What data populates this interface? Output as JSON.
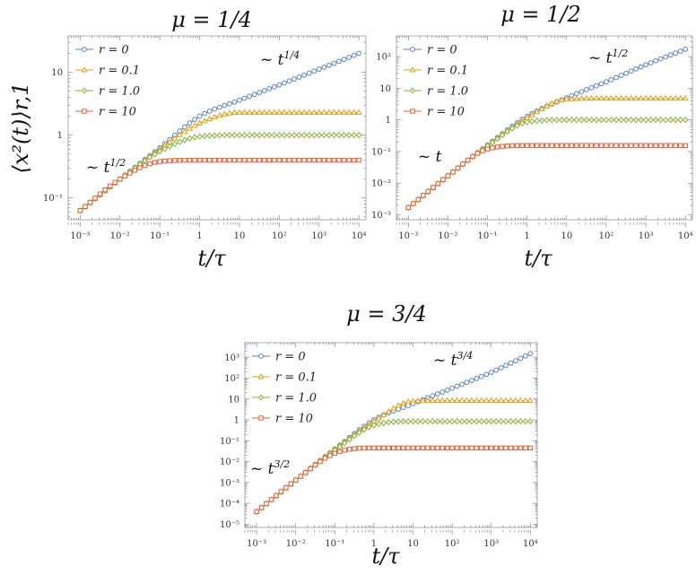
{
  "chart_data": [
    {
      "type": "line",
      "title": "μ = 1/4",
      "xlabel": "t/τ",
      "ylabel": "⟨x²(t)⟩r,1",
      "xscale": "log",
      "yscale": "log",
      "xlim": [
        0.0005,
        15000
      ],
      "ylim": [
        0.045,
        38
      ],
      "x_ticks": [
        0.001,
        0.01,
        0.1,
        1,
        10,
        100,
        1000,
        10000
      ],
      "x_tick_labels": [
        "10⁻³",
        "10⁻²",
        "10⁻¹",
        "1",
        "10",
        "10²",
        "10³",
        "10⁴"
      ],
      "y_ticks": [
        0.1,
        1,
        10
      ],
      "y_tick_labels": [
        "10⁻¹",
        "1",
        "10"
      ],
      "legend_position": "top-left",
      "grid": false,
      "annotations": [
        {
          "text": "~ t",
          "exp": "1/4",
          "near": "r = 0 curve, top right"
        },
        {
          "text": "~ t",
          "exp": "1/2",
          "near": "early-time region"
        }
      ],
      "x": [
        0.001,
        0.01,
        0.1,
        1,
        10,
        100,
        1000,
        10000
      ],
      "series": [
        {
          "name": "r = 0",
          "values": [
            0.063,
            0.2,
            0.63,
            2.0,
            3.6,
            6.3,
            11.2,
            20.0
          ]
        },
        {
          "name": "r = 0.1",
          "values": [
            0.063,
            0.2,
            0.6,
            1.55,
            2.3,
            2.3,
            2.3,
            2.3
          ]
        },
        {
          "name": "r = 1.0",
          "values": [
            0.063,
            0.2,
            0.55,
            0.95,
            1.0,
            1.0,
            1.0,
            1.0
          ]
        },
        {
          "name": "r = 10",
          "values": [
            0.063,
            0.2,
            0.38,
            0.4,
            0.4,
            0.4,
            0.4,
            0.4
          ]
        }
      ]
    },
    {
      "type": "line",
      "title": "μ = 1/2",
      "xlabel": "t/τ",
      "ylabel": "",
      "xscale": "log",
      "yscale": "log",
      "xlim": [
        0.0005,
        15000
      ],
      "ylim": [
        0.0007,
        450
      ],
      "x_ticks": [
        0.001,
        0.01,
        0.1,
        1,
        10,
        100,
        1000,
        10000
      ],
      "x_tick_labels": [
        "10⁻³",
        "10⁻²",
        "10⁻¹",
        "1",
        "10",
        "10²",
        "10³",
        "10⁴"
      ],
      "y_ticks": [
        0.001,
        0.01,
        0.1,
        1,
        10,
        100
      ],
      "y_tick_labels": [
        "10⁻³",
        "10⁻²",
        "10⁻¹",
        "1",
        "10",
        "10²"
      ],
      "legend_position": "top-left",
      "grid": false,
      "annotations": [
        {
          "text": "~ t",
          "exp": "1/2",
          "near": "r = 0 curve, top right"
        },
        {
          "text": "~ t",
          "exp": "",
          "near": "early-time region"
        }
      ],
      "x": [
        0.001,
        0.01,
        0.1,
        1,
        10,
        100,
        1000,
        10000
      ],
      "series": [
        {
          "name": "r = 0",
          "values": [
            0.0017,
            0.017,
            0.16,
            1.3,
            5.0,
            16.0,
            55.0,
            170.0
          ]
        },
        {
          "name": "r = 0.1",
          "values": [
            0.0017,
            0.017,
            0.16,
            1.15,
            4.5,
            4.8,
            4.8,
            4.8
          ]
        },
        {
          "name": "r = 1.0",
          "values": [
            0.0017,
            0.017,
            0.15,
            0.85,
            1.0,
            1.0,
            1.0,
            1.0
          ]
        },
        {
          "name": "r = 10",
          "values": [
            0.0017,
            0.017,
            0.12,
            0.155,
            0.155,
            0.155,
            0.155,
            0.155
          ]
        }
      ]
    },
    {
      "type": "line",
      "title": "μ = 3/4",
      "xlabel": "t/τ",
      "ylabel": "",
      "xscale": "log",
      "yscale": "log",
      "xlim": [
        0.0005,
        15000
      ],
      "ylim": [
        7e-06,
        5000
      ],
      "x_ticks": [
        0.001,
        0.01,
        0.1,
        1,
        10,
        100,
        1000,
        10000
      ],
      "x_tick_labels": [
        "10⁻³",
        "10⁻²",
        "10⁻¹",
        "1",
        "10",
        "10²",
        "10³",
        "10⁴"
      ],
      "y_ticks": [
        1e-05,
        0.0001,
        0.001,
        0.01,
        0.1,
        1,
        10,
        100,
        1000
      ],
      "y_tick_labels": [
        "10⁻⁵",
        "10⁻⁴",
        "10⁻³",
        "10⁻²",
        "10⁻¹",
        "1",
        "10",
        "10²",
        "10³"
      ],
      "legend_position": "top-left",
      "grid": false,
      "annotations": [
        {
          "text": "~ t",
          "exp": "3/4",
          "near": "r = 0 curve, top right"
        },
        {
          "text": "~ t",
          "exp": "3/2",
          "near": "early-time region"
        }
      ],
      "x": [
        0.001,
        0.01,
        0.1,
        1,
        10,
        100,
        1000,
        10000
      ],
      "series": [
        {
          "name": "r = 0",
          "values": [
            4e-05,
            0.0013,
            0.04,
            1.0,
            6.0,
            33.0,
            190.0,
            1500.0
          ]
        },
        {
          "name": "r = 0.1",
          "values": [
            4e-05,
            0.0013,
            0.04,
            0.85,
            8.0,
            8.5,
            8.5,
            8.5
          ]
        },
        {
          "name": "r = 1.0",
          "values": [
            4e-05,
            0.0013,
            0.035,
            0.55,
            0.85,
            0.85,
            0.85,
            0.85
          ]
        },
        {
          "name": "r = 10",
          "values": [
            4e-05,
            0.0013,
            0.025,
            0.045,
            0.045,
            0.045,
            0.045,
            0.045
          ]
        }
      ]
    }
  ],
  "colors": {
    "r = 0": "#5b82c2",
    "r = 0.1": "#e0a21b",
    "r = 1.0": "#8cb03d",
    "r = 10": "#e0623a",
    "frame": "#999999",
    "text": "#111111"
  },
  "markers": {
    "r = 0": "circle",
    "r = 0.1": "triangle",
    "r = 1.0": "diamond",
    "r = 10": "square"
  }
}
